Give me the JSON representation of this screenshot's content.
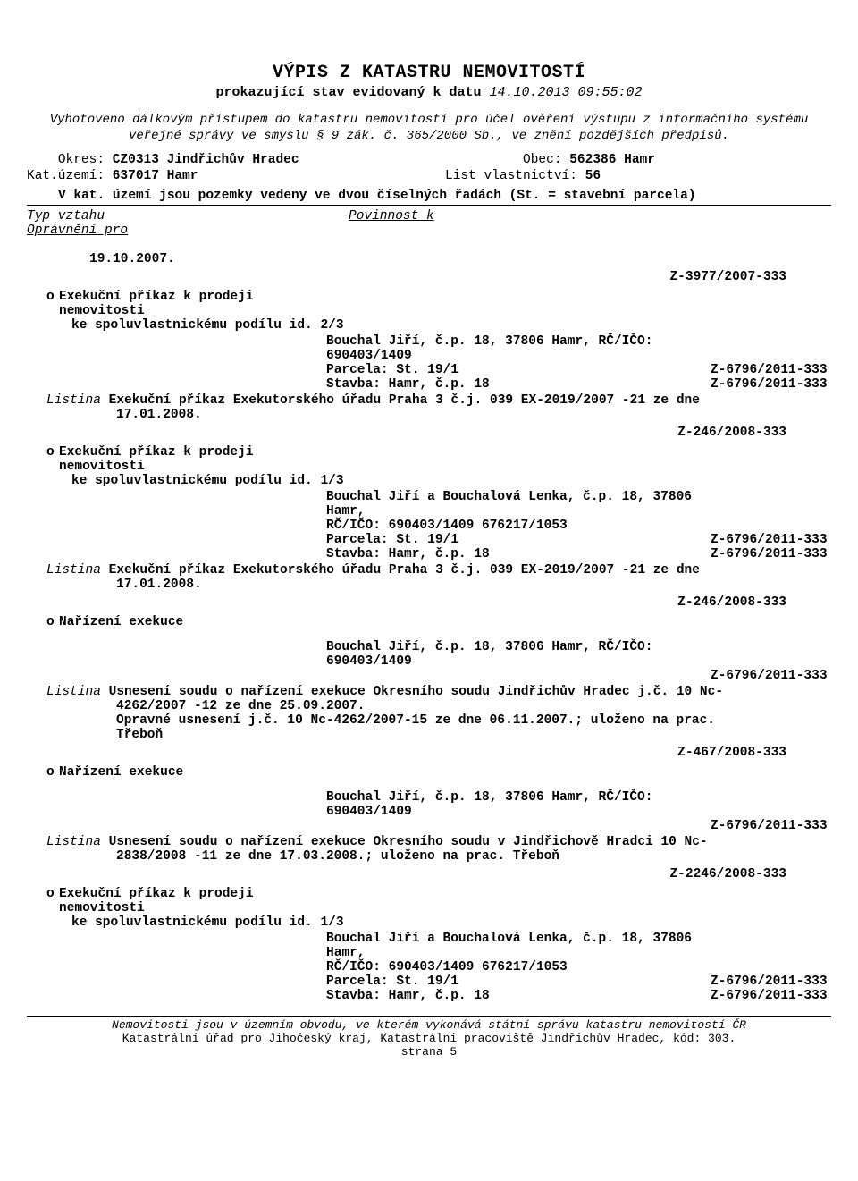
{
  "title": "VÝPIS Z KATASTRU NEMOVITOSTÍ",
  "subtitle_lead": "prokazující stav evidovaný k datu",
  "subtitle_date": "14.10.2013 09:55:02",
  "disclaimer": "Vyhotoveno dálkovým přístupem do katastru nemovitostí pro účel ověření výstupu z informačního systému veřejné správy\nve smyslu § 9 zák. č. 365/2000 Sb., ve znění pozdějších předpisů.",
  "okres_label": "Okres:",
  "okres_value": "CZ0313 Jindřichův Hradec",
  "obec_label": "Obec:",
  "obec_value": "562386 Hamr",
  "katuz_label": "Kat.území:",
  "katuz_value": "637017 Hamr",
  "lv_label": "List vlastnictví:",
  "lv_value": "56",
  "series_note": "V kat. území jsou pozemky vedeny ve dvou číselných řadách  (St. = stavební parcela)",
  "rel_left": "Typ vztahu",
  "rel_left2": "Oprávnění pro",
  "rel_right": "Povinnost k",
  "lone_date": "19.10.2007.",
  "z_header": "Z-3977/2007-333",
  "entries": [
    {
      "title": "Exekuční příkaz k prodeji",
      "title2": "nemovitosti",
      "share": "ke spoluvlastnickému podílu id. 2/3",
      "details": [
        {
          "lead": "Bouchal Jiří, č.p. 18, 37806 Hamr, RČ/IČO:",
          "code": ""
        },
        {
          "lead": "690403/1409",
          "code": ""
        },
        {
          "lead": "Parcela: St.   19/1",
          "code": "Z-6796/2011-333"
        },
        {
          "lead": "Stavba: Hamr, č.p. 18",
          "code": "Z-6796/2011-333"
        }
      ],
      "listina": "Exekuční příkaz Exekutorského úřadu Praha 3 č.j. 039 EX-2019/2007 -21 ze dne",
      "listina2": "17.01.2008.",
      "z_after": "Z-246/2008-333"
    },
    {
      "title": "Exekuční příkaz k prodeji",
      "title2": "nemovitosti",
      "share": "ke spoluvlastnickému podílu id. 1/3",
      "details": [
        {
          "lead": "Bouchal Jiří a Bouchalová Lenka, č.p. 18, 37806 Hamr,",
          "code": ""
        },
        {
          "lead": "RČ/IČO: 690403/1409  676217/1053",
          "code": ""
        },
        {
          "lead": "Parcela: St.   19/1",
          "code": "Z-6796/2011-333"
        },
        {
          "lead": "Stavba: Hamr, č.p. 18",
          "code": "Z-6796/2011-333"
        }
      ],
      "listina": "Exekuční příkaz Exekutorského úřadu Praha 3 č.j. 039 EX-2019/2007 -21 ze dne",
      "listina2": "17.01.2008.",
      "z_after": "Z-246/2008-333"
    },
    {
      "title": "Nařízení exekuce",
      "title2": "",
      "share": "",
      "details": [
        {
          "lead": "Bouchal Jiří, č.p. 18, 37806 Hamr, RČ/IČO:",
          "code": ""
        },
        {
          "lead": "690403/1409",
          "code": ""
        },
        {
          "lead": "",
          "code": "Z-6796/2011-333"
        }
      ],
      "listina": "Usnesení soudu o nařízení exekuce Okresního soudu Jindřichův Hradec j.č. 10 Nc-",
      "listina2": "4262/2007 -12 ze dne 25.09.2007.",
      "listina3": "Opravné usnesení j.č. 10 Nc-4262/2007-15 ze dne 06.11.2007.; uloženo na prac.",
      "listina4": "Třeboň",
      "z_after": "Z-467/2008-333"
    },
    {
      "title": "Nařízení exekuce",
      "title2": "",
      "share": "",
      "details": [
        {
          "lead": "Bouchal Jiří, č.p. 18, 37806 Hamr, RČ/IČO:",
          "code": ""
        },
        {
          "lead": "690403/1409",
          "code": ""
        },
        {
          "lead": "",
          "code": "Z-6796/2011-333"
        }
      ],
      "listina": "Usnesení soudu o nařízení exekuce Okresního soudu v Jindřichově Hradci 10 Nc-",
      "listina2": "2838/2008 -11 ze dne 17.03.2008.; uloženo na prac. Třeboň",
      "z_after": "Z-2246/2008-333"
    },
    {
      "title": "Exekuční příkaz k prodeji",
      "title2": "nemovitosti",
      "share": "ke spoluvlastnickému podílu id. 1/3",
      "details": [
        {
          "lead": "Bouchal Jiří a Bouchalová Lenka, č.p. 18, 37806 Hamr,",
          "code": ""
        },
        {
          "lead": "RČ/IČO: 690403/1409  676217/1053",
          "code": ""
        },
        {
          "lead": "Parcela: St.   19/1",
          "code": "Z-6796/2011-333"
        },
        {
          "lead": "Stavba: Hamr, č.p. 18",
          "code": "Z-6796/2011-333"
        }
      ]
    }
  ],
  "foot1": "Nemovitosti jsou v územním obvodu, ve kterém vykonává státní správu katastru nemovitostí ČR",
  "foot2": "Katastrální úřad pro Jihočeský kraj, Katastrální pracoviště Jindřichův Hradec, kód: 303.",
  "foot3": "strana 5",
  "bullet": "o",
  "listina_lbl": "Listina"
}
